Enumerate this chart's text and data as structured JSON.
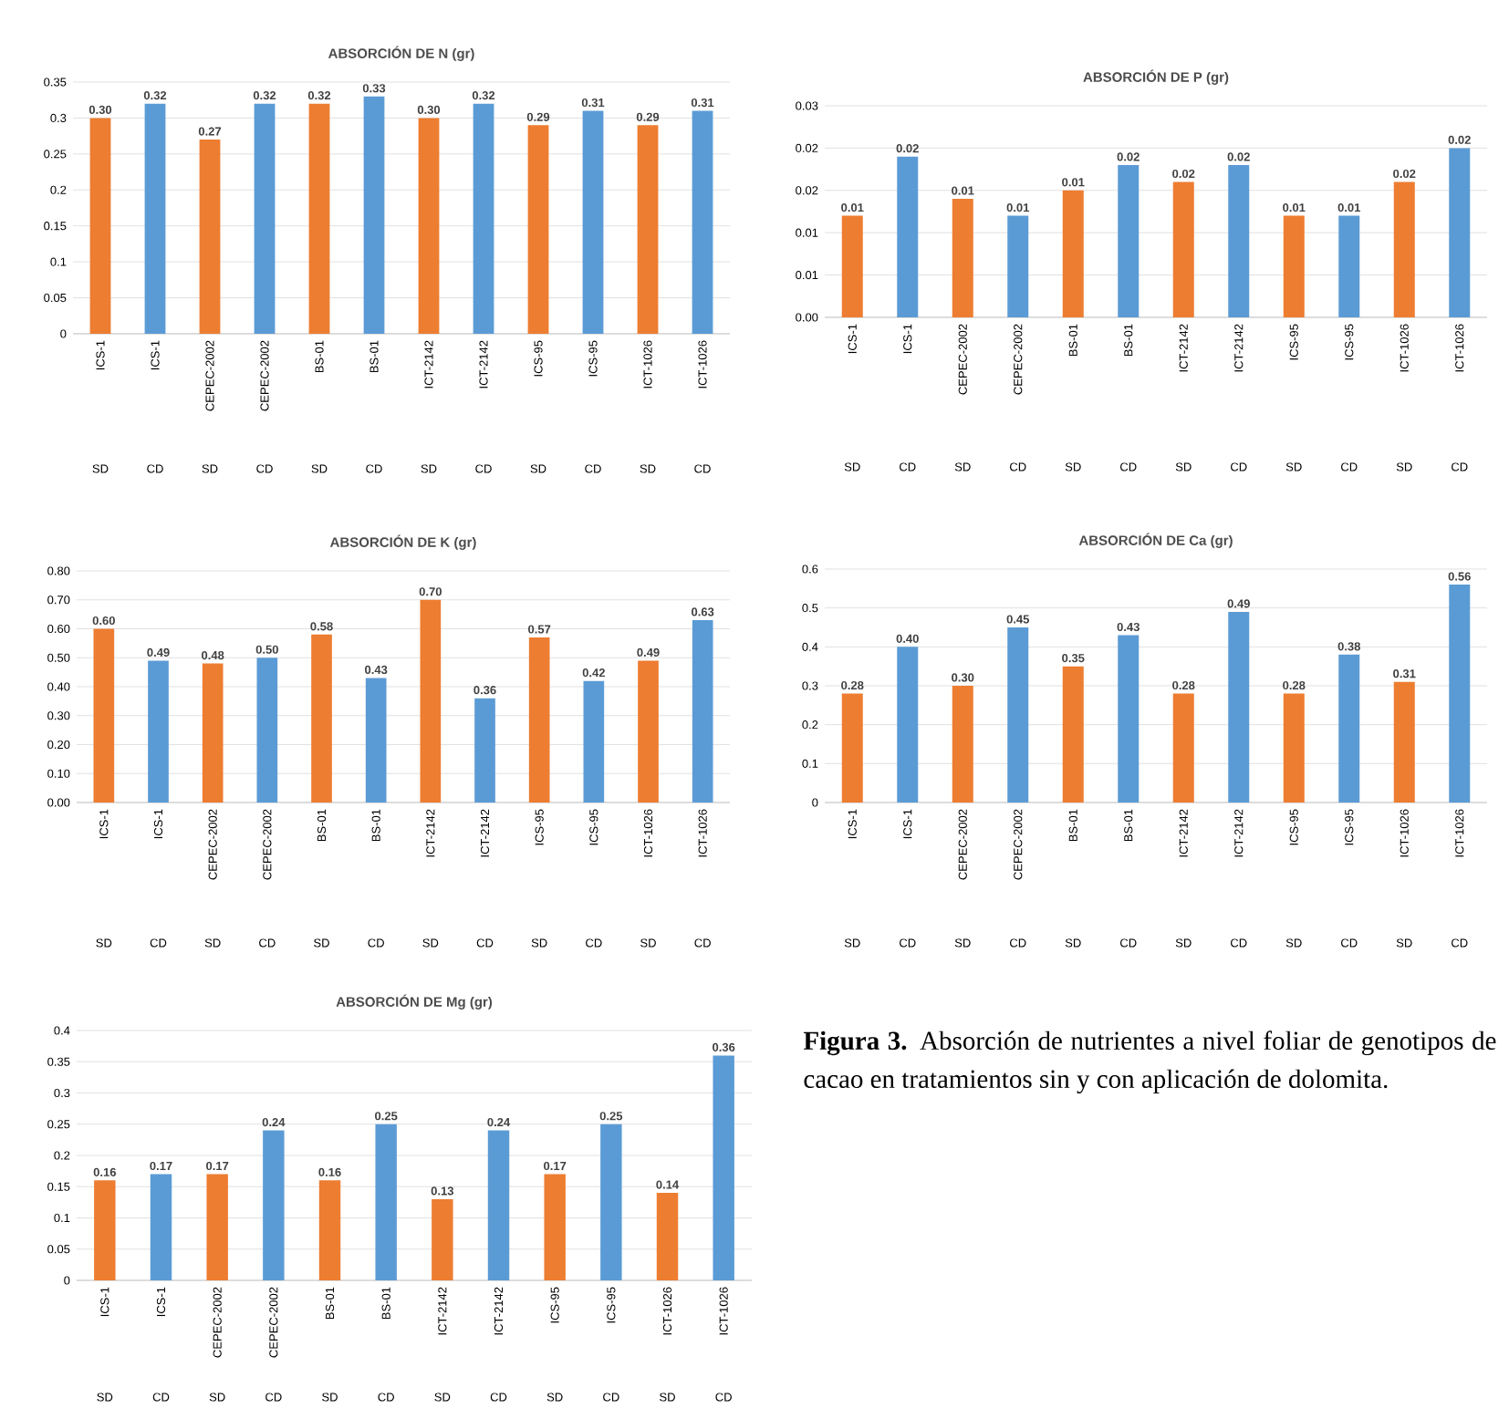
{
  "chart_data": [
    {
      "type": "bar",
      "title": "ABSORCIÓN DE N (gr)",
      "categories": [
        "ICS-1",
        "ICS-1",
        "CEPEC-2002",
        "CEPEC-2002",
        "BS-01",
        "BS-01",
        "ICT-2142",
        "ICT-2142",
        "ICS-95",
        "ICS-95",
        "ICT-1026",
        "ICT-1026"
      ],
      "values": [
        0.3,
        0.32,
        0.27,
        0.32,
        0.32,
        0.33,
        0.3,
        0.32,
        0.29,
        0.31,
        0.29,
        0.31
      ],
      "value_labels": [
        "0.30",
        "0.32",
        "0.27",
        "0.32",
        "0.32",
        "0.33",
        "0.30",
        "0.32",
        "0.29",
        "0.31",
        "0.29",
        "0.31"
      ],
      "colors": [
        "#ed7d31",
        "#5b9bd5",
        "#ed7d31",
        "#5b9bd5",
        "#ed7d31",
        "#5b9bd5",
        "#ed7d31",
        "#5b9bd5",
        "#ed7d31",
        "#5b9bd5",
        "#ed7d31",
        "#5b9bd5"
      ],
      "annotations": [
        "SD",
        "CD",
        "SD",
        "CD",
        "SD",
        "CD",
        "SD",
        "CD",
        "SD",
        "CD",
        "SD",
        "CD"
      ],
      "ylim": [
        0,
        0.35
      ],
      "yticks": [
        0,
        0.05,
        0.1,
        0.15,
        0.2,
        0.25,
        0.3,
        0.35
      ],
      "grid": "y"
    },
    {
      "type": "bar",
      "title": "ABSORCIÓN DE P (gr)",
      "categories": [
        "ICS-1",
        "ICS-1",
        "CEPEC-2002",
        "CEPEC-2002",
        "BS-01",
        "BS-01",
        "ICT-2142",
        "ICT-2142",
        "ICS-95",
        "ICS-95",
        "ICT-1026",
        "ICT-1026"
      ],
      "values": [
        0.012,
        0.019,
        0.014,
        0.012,
        0.015,
        0.018,
        0.016,
        0.018,
        0.012,
        0.012,
        0.016,
        0.02
      ],
      "value_labels": [
        "0.01",
        "0.02",
        "0.01",
        "0.01",
        "0.01",
        "0.02",
        "0.02",
        "0.02",
        "0.01",
        "0.01",
        "0.02",
        "0.02"
      ],
      "colors": [
        "#ed7d31",
        "#5b9bd5",
        "#ed7d31",
        "#5b9bd5",
        "#ed7d31",
        "#5b9bd5",
        "#ed7d31",
        "#5b9bd5",
        "#ed7d31",
        "#5b9bd5",
        "#ed7d31",
        "#5b9bd5"
      ],
      "annotations": [
        "SD",
        "CD",
        "SD",
        "CD",
        "SD",
        "CD",
        "SD",
        "CD",
        "SD",
        "CD",
        "SD",
        "CD"
      ],
      "ylim": [
        0,
        0.025
      ],
      "yticks": [
        {
          "value": 0,
          "label": "0.00"
        },
        {
          "value": 0.005,
          "label": "0.01"
        },
        {
          "value": 0.01,
          "label": "0.01"
        },
        {
          "value": 0.015,
          "label": "0.02"
        },
        {
          "value": 0.02,
          "label": "0.02"
        },
        {
          "value": 0.025,
          "label": "0.03"
        }
      ],
      "grid": "y"
    },
    {
      "type": "bar",
      "title": "ABSORCIÓN DE K (gr)",
      "categories": [
        "ICS-1",
        "ICS-1",
        "CEPEC-2002",
        "CEPEC-2002",
        "BS-01",
        "BS-01",
        "ICT-2142",
        "ICT-2142",
        "ICS-95",
        "ICS-95",
        "ICT-1026",
        "ICT-1026"
      ],
      "values": [
        0.6,
        0.49,
        0.48,
        0.5,
        0.58,
        0.43,
        0.7,
        0.36,
        0.57,
        0.42,
        0.49,
        0.63
      ],
      "value_labels": [
        "0.60",
        "0.49",
        "0.48",
        "0.50",
        "0.58",
        "0.43",
        "0.70",
        "0.36",
        "0.57",
        "0.42",
        "0.49",
        "0.63"
      ],
      "colors": [
        "#ed7d31",
        "#5b9bd5",
        "#ed7d31",
        "#5b9bd5",
        "#ed7d31",
        "#5b9bd5",
        "#ed7d31",
        "#5b9bd5",
        "#ed7d31",
        "#5b9bd5",
        "#ed7d31",
        "#5b9bd5"
      ],
      "annotations": [
        "SD",
        "CD",
        "SD",
        "CD",
        "SD",
        "CD",
        "SD",
        "CD",
        "SD",
        "CD",
        "SD",
        "CD"
      ],
      "ylim": [
        0,
        0.8
      ],
      "yticks": [
        {
          "value": 0,
          "label": "0.00"
        },
        {
          "value": 0.1,
          "label": "0.10"
        },
        {
          "value": 0.2,
          "label": "0.20"
        },
        {
          "value": 0.3,
          "label": "0.30"
        },
        {
          "value": 0.4,
          "label": "0.40"
        },
        {
          "value": 0.5,
          "label": "0.50"
        },
        {
          "value": 0.6,
          "label": "0.60"
        },
        {
          "value": 0.7,
          "label": "0.70"
        },
        {
          "value": 0.8,
          "label": "0.80"
        }
      ],
      "grid": "y"
    },
    {
      "type": "bar",
      "title": "ABSORCIÓN DE Ca (gr)",
      "categories": [
        "ICS-1",
        "ICS-1",
        "CEPEC-2002",
        "CEPEC-2002",
        "BS-01",
        "BS-01",
        "ICT-2142",
        "ICT-2142",
        "ICS-95",
        "ICS-95",
        "ICT-1026",
        "ICT-1026"
      ],
      "values": [
        0.28,
        0.4,
        0.3,
        0.45,
        0.35,
        0.43,
        0.28,
        0.49,
        0.28,
        0.38,
        0.31,
        0.56
      ],
      "value_labels": [
        "0.28",
        "0.40",
        "0.30",
        "0.45",
        "0.35",
        "0.43",
        "0.28",
        "0.49",
        "0.28",
        "0.38",
        "0.31",
        "0.56"
      ],
      "colors": [
        "#ed7d31",
        "#5b9bd5",
        "#ed7d31",
        "#5b9bd5",
        "#ed7d31",
        "#5b9bd5",
        "#ed7d31",
        "#5b9bd5",
        "#ed7d31",
        "#5b9bd5",
        "#ed7d31",
        "#5b9bd5"
      ],
      "annotations": [
        "SD",
        "CD",
        "SD",
        "CD",
        "SD",
        "CD",
        "SD",
        "CD",
        "SD",
        "CD",
        "SD",
        "CD"
      ],
      "ylim": [
        0,
        0.6
      ],
      "yticks": [
        0,
        0.1,
        0.2,
        0.3,
        0.4,
        0.5,
        0.6
      ],
      "grid": "y"
    },
    {
      "type": "bar",
      "title": "ABSORCIÓN DE Mg (gr)",
      "categories": [
        "ICS-1",
        "ICS-1",
        "CEPEC-2002",
        "CEPEC-2002",
        "BS-01",
        "BS-01",
        "ICT-2142",
        "ICT-2142",
        "ICS-95",
        "ICS-95",
        "ICT-1026",
        "ICT-1026"
      ],
      "values": [
        0.16,
        0.17,
        0.17,
        0.24,
        0.16,
        0.25,
        0.13,
        0.24,
        0.17,
        0.25,
        0.14,
        0.36
      ],
      "value_labels": [
        "0.16",
        "0.17",
        "0.17",
        "0.24",
        "0.16",
        "0.25",
        "0.13",
        "0.24",
        "0.17",
        "0.25",
        "0.14",
        "0.36"
      ],
      "colors": [
        "#ed7d31",
        "#5b9bd5",
        "#ed7d31",
        "#5b9bd5",
        "#ed7d31",
        "#5b9bd5",
        "#ed7d31",
        "#5b9bd5",
        "#ed7d31",
        "#5b9bd5",
        "#ed7d31",
        "#5b9bd5"
      ],
      "annotations": [
        "SD",
        "CD",
        "SD",
        "CD",
        "SD",
        "CD",
        "SD",
        "CD",
        "SD",
        "CD",
        "SD",
        "CD"
      ],
      "ylim": [
        0,
        0.4
      ],
      "yticks": [
        0,
        0.05,
        0.1,
        0.15,
        0.2,
        0.25,
        0.3,
        0.35,
        0.4
      ],
      "grid": "y"
    },
    {
      "type": "other",
      "annotations": [
        "**Figura 3.** Absorción de nutrientes a nivel foliar de genotipos de cacao en tratamientos sin y con aplicación de dolomita."
      ]
    }
  ]
}
